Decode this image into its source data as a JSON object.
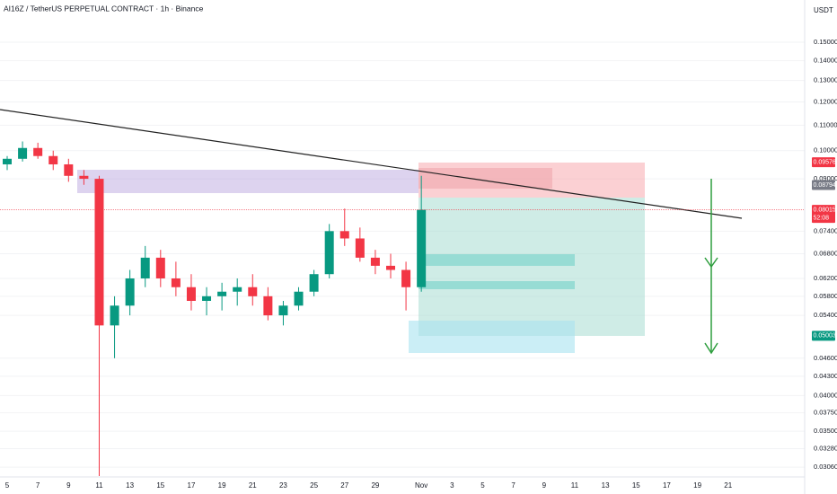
{
  "chart_data": {
    "type": "candlestick",
    "title": "AI16Z / TetherUS PERPETUAL CONTRACT · 1h · Binance",
    "y_unit": "USDT",
    "log_scale": true,
    "grid": true,
    "up_color": "#089981",
    "down_color": "#f23645",
    "ylim": [
      0.0296,
      0.1757
    ],
    "yticks": [
      {
        "value": 0.15,
        "label": "0.15000"
      },
      {
        "value": 0.14,
        "label": "0.14000"
      },
      {
        "value": 0.13,
        "label": "0.13000"
      },
      {
        "value": 0.12,
        "label": "0.12000"
      },
      {
        "value": 0.11,
        "label": "0.11000"
      },
      {
        "value": 0.1,
        "label": "0.10000"
      },
      {
        "value": 0.09,
        "label": "0.09000"
      },
      {
        "value": 0.074,
        "label": "0.07400"
      },
      {
        "value": 0.068,
        "label": "0.06800"
      },
      {
        "value": 0.062,
        "label": "0.06200"
      },
      {
        "value": 0.058,
        "label": "0.05800"
      },
      {
        "value": 0.054,
        "label": "0.05400"
      },
      {
        "value": 0.046,
        "label": "0.04600"
      },
      {
        "value": 0.043,
        "label": "0.04300"
      },
      {
        "value": 0.04,
        "label": "0.04000"
      },
      {
        "value": 0.0375,
        "label": "0.03750"
      },
      {
        "value": 0.035,
        "label": "0.03500"
      },
      {
        "value": 0.0328,
        "label": "0.03280"
      },
      {
        "value": 0.0306,
        "label": "0.03060"
      }
    ],
    "xticks": [
      "5",
      "7",
      "9",
      "11",
      "13",
      "15",
      "17",
      "19",
      "21",
      "23",
      "25",
      "27",
      "29",
      "Nov",
      "3",
      "5",
      "7",
      "9",
      "11",
      "13",
      "15",
      "17",
      "19",
      "21"
    ],
    "candles": [
      [
        0.095,
        0.098,
        0.093,
        0.097
      ],
      [
        0.097,
        0.1035,
        0.096,
        0.101
      ],
      [
        0.101,
        0.103,
        0.097,
        0.098
      ],
      [
        0.098,
        0.1,
        0.093,
        0.095
      ],
      [
        0.095,
        0.097,
        0.089,
        0.091
      ],
      [
        0.091,
        0.093,
        0.088,
        0.09
      ],
      [
        0.09,
        0.091,
        0.0296,
        0.052
      ],
      [
        0.052,
        0.058,
        0.046,
        0.056
      ],
      [
        0.056,
        0.064,
        0.054,
        0.062
      ],
      [
        0.062,
        0.07,
        0.06,
        0.067
      ],
      [
        0.067,
        0.069,
        0.06,
        0.062
      ],
      [
        0.062,
        0.066,
        0.058,
        0.06
      ],
      [
        0.06,
        0.063,
        0.055,
        0.057
      ],
      [
        0.057,
        0.06,
        0.054,
        0.058
      ],
      [
        0.058,
        0.061,
        0.055,
        0.059
      ],
      [
        0.059,
        0.062,
        0.056,
        0.06
      ],
      [
        0.06,
        0.063,
        0.056,
        0.058
      ],
      [
        0.058,
        0.06,
        0.053,
        0.054
      ],
      [
        0.054,
        0.057,
        0.052,
        0.056
      ],
      [
        0.056,
        0.06,
        0.055,
        0.059
      ],
      [
        0.059,
        0.064,
        0.058,
        0.063
      ],
      [
        0.063,
        0.076,
        0.062,
        0.074
      ],
      [
        0.074,
        0.0805,
        0.07,
        0.072
      ],
      [
        0.072,
        0.075,
        0.066,
        0.067
      ],
      [
        0.067,
        0.069,
        0.063,
        0.065
      ],
      [
        0.065,
        0.068,
        0.062,
        0.064
      ],
      [
        0.064,
        0.066,
        0.055,
        0.06
      ],
      [
        0.06,
        0.091,
        0.059,
        0.08015
      ]
    ],
    "price_labels": [
      {
        "value": 0.09576,
        "color": "#f23645"
      },
      {
        "value": 0.08794,
        "color": "#787b86"
      },
      {
        "value": 0.08015,
        "color": "#f23645",
        "countdown": "52:08"
      },
      {
        "value": 0.05003,
        "color": "#089981"
      }
    ]
  }
}
